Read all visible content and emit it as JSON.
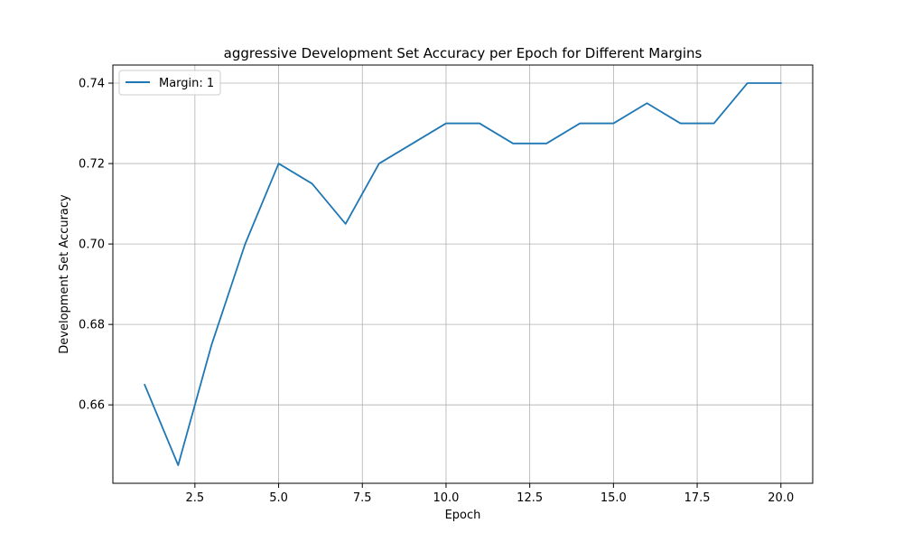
{
  "chart_data": {
    "type": "line",
    "title": "aggressive Development Set Accuracy per Epoch for Different Margins",
    "xlabel": "Epoch",
    "ylabel": "Development Set Accuracy",
    "xlim": [
      0.05,
      20.95
    ],
    "ylim": [
      0.6405,
      0.7445
    ],
    "x_ticks": [
      2.5,
      5.0,
      7.5,
      10.0,
      12.5,
      15.0,
      17.5,
      20.0
    ],
    "x_tick_labels": [
      "2.5",
      "5.0",
      "7.5",
      "10.0",
      "12.5",
      "15.0",
      "17.5",
      "20.0"
    ],
    "y_ticks": [
      0.66,
      0.68,
      0.7,
      0.72,
      0.74
    ],
    "y_tick_labels": [
      "0.66",
      "0.68",
      "0.70",
      "0.72",
      "0.74"
    ],
    "grid": true,
    "legend_position": "top-left",
    "series": [
      {
        "name": "Margin: 1",
        "color": "#1f77b4",
        "x": [
          1,
          2,
          3,
          4,
          5,
          6,
          7,
          8,
          9,
          10,
          11,
          12,
          13,
          14,
          15,
          16,
          17,
          18,
          19,
          20
        ],
        "y": [
          0.665,
          0.645,
          0.675,
          0.7,
          0.72,
          0.715,
          0.705,
          0.72,
          0.725,
          0.73,
          0.73,
          0.725,
          0.725,
          0.73,
          0.73,
          0.735,
          0.73,
          0.73,
          0.74,
          0.74
        ]
      }
    ]
  }
}
